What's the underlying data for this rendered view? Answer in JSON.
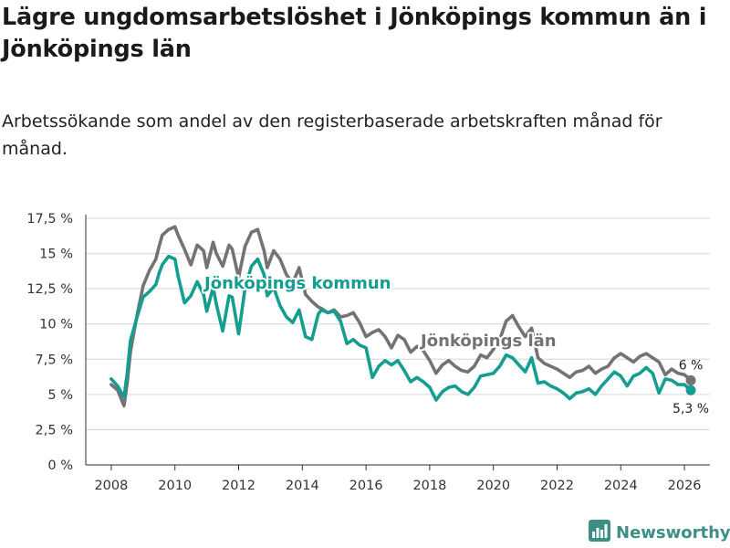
{
  "title": "Lägre ungdomsarbetslöshet i Jönköpings kommun än i Jönköpings län",
  "subtitle": "Arbetssökande som andel av den registerbaserade arbetskraften månad för månad.",
  "brand": {
    "name": "Newsworthy",
    "icon": "bar-chart-logo-icon"
  },
  "colors": {
    "kommun": "#139e8f",
    "lan": "#737373",
    "grid": "#dddddd",
    "axis": "#333333",
    "brand": "#3d8f86"
  },
  "chart_data": {
    "type": "line",
    "title": "Lägre ungdomsarbetslöshet i Jönköpings kommun än i Jönköpings län",
    "subtitle": "Arbetssökande som andel av den registerbaserade arbetskraften månad för månad.",
    "xlabel": "",
    "ylabel": "",
    "xlim": [
      2007.2,
      2026.8
    ],
    "ylim": [
      0,
      17.5
    ],
    "grid": true,
    "y_ticks": [
      0,
      2.5,
      5,
      7.5,
      10,
      12.5,
      15,
      17.5
    ],
    "y_tick_labels": [
      "0 %",
      "2,5 %",
      "5 %",
      "7,5 %",
      "10 %",
      "12,5 %",
      "15 %",
      "17,5 %"
    ],
    "x_ticks": [
      2008,
      2010,
      2012,
      2014,
      2016,
      2018,
      2020,
      2022,
      2024,
      2026
    ],
    "x_tick_labels": [
      "2008",
      "2010",
      "2012",
      "2014",
      "2016",
      "2018",
      "2020",
      "2022",
      "2024",
      "2026"
    ],
    "series": [
      {
        "name": "Jönköpings län",
        "label": "Jönköpings län",
        "end_label": "6 %",
        "color": "#737373",
        "x": [
          2008.0,
          2008.2,
          2008.4,
          2008.5,
          2008.6,
          2008.8,
          2009.0,
          2009.2,
          2009.4,
          2009.5,
          2009.6,
          2009.8,
          2010.0,
          2010.1,
          2010.3,
          2010.5,
          2010.7,
          2010.9,
          2011.0,
          2011.2,
          2011.3,
          2011.5,
          2011.7,
          2011.8,
          2012.0,
          2012.2,
          2012.4,
          2012.6,
          2012.8,
          2012.9,
          2013.1,
          2013.3,
          2013.5,
          2013.7,
          2013.9,
          2014.1,
          2014.3,
          2014.5,
          2014.6,
          2014.8,
          2015.0,
          2015.2,
          2015.4,
          2015.6,
          2015.8,
          2016.0,
          2016.2,
          2016.4,
          2016.6,
          2016.8,
          2017.0,
          2017.2,
          2017.4,
          2017.6,
          2017.8,
          2018.0,
          2018.2,
          2018.4,
          2018.6,
          2018.8,
          2019.0,
          2019.2,
          2019.4,
          2019.6,
          2019.8,
          2020.0,
          2020.2,
          2020.4,
          2020.6,
          2020.8,
          2021.0,
          2021.2,
          2021.4,
          2021.6,
          2021.8,
          2022.0,
          2022.2,
          2022.4,
          2022.6,
          2022.8,
          2023.0,
          2023.2,
          2023.4,
          2023.6,
          2023.8,
          2024.0,
          2024.2,
          2024.4,
          2024.6,
          2024.8,
          2025.0,
          2025.2,
          2025.4,
          2025.6,
          2025.8,
          2026.0,
          2026.2
        ],
        "values": [
          5.7,
          5.3,
          4.2,
          5.8,
          8.0,
          10.5,
          12.7,
          13.8,
          14.6,
          15.5,
          16.3,
          16.7,
          16.9,
          16.3,
          15.3,
          14.2,
          15.6,
          15.2,
          14.0,
          15.8,
          15.0,
          14.1,
          15.6,
          15.3,
          13.3,
          15.5,
          16.5,
          16.7,
          15.2,
          14.0,
          15.2,
          14.6,
          13.5,
          12.9,
          14.0,
          12.1,
          11.6,
          11.2,
          11.1,
          10.8,
          11.0,
          10.5,
          10.6,
          10.8,
          10.1,
          9.1,
          9.4,
          9.6,
          9.1,
          8.3,
          9.2,
          8.9,
          8.0,
          8.4,
          8.1,
          7.4,
          6.5,
          7.1,
          7.4,
          7.0,
          6.7,
          6.6,
          7.0,
          7.8,
          7.6,
          8.2,
          8.9,
          10.2,
          10.6,
          9.8,
          9.1,
          9.7,
          7.6,
          7.2,
          7.0,
          6.8,
          6.5,
          6.2,
          6.6,
          6.7,
          7.0,
          6.5,
          6.8,
          7.0,
          7.6,
          7.9,
          7.6,
          7.3,
          7.7,
          7.9,
          7.6,
          7.3,
          6.4,
          6.8,
          6.5,
          6.4,
          6.0
        ]
      },
      {
        "name": "Jönköpings kommun",
        "label": "Jönköpings kommun",
        "end_label": "5,3 %",
        "color": "#139e8f",
        "x": [
          2008.0,
          2008.2,
          2008.4,
          2008.5,
          2008.6,
          2008.8,
          2009.0,
          2009.2,
          2009.4,
          2009.5,
          2009.6,
          2009.8,
          2010.0,
          2010.1,
          2010.3,
          2010.5,
          2010.7,
          2010.9,
          2011.0,
          2011.2,
          2011.3,
          2011.5,
          2011.7,
          2011.8,
          2012.0,
          2012.2,
          2012.4,
          2012.6,
          2012.8,
          2012.9,
          2013.1,
          2013.3,
          2013.5,
          2013.7,
          2013.9,
          2014.1,
          2014.3,
          2014.5,
          2014.6,
          2014.8,
          2015.0,
          2015.2,
          2015.4,
          2015.6,
          2015.8,
          2016.0,
          2016.2,
          2016.4,
          2016.6,
          2016.8,
          2017.0,
          2017.2,
          2017.4,
          2017.6,
          2017.8,
          2018.0,
          2018.2,
          2018.4,
          2018.6,
          2018.8,
          2019.0,
          2019.2,
          2019.4,
          2019.6,
          2019.8,
          2020.0,
          2020.2,
          2020.4,
          2020.6,
          2020.8,
          2021.0,
          2021.2,
          2021.4,
          2021.6,
          2021.8,
          2022.0,
          2022.2,
          2022.4,
          2022.6,
          2022.8,
          2023.0,
          2023.2,
          2023.4,
          2023.6,
          2023.8,
          2024.0,
          2024.2,
          2024.4,
          2024.6,
          2024.8,
          2025.0,
          2025.2,
          2025.4,
          2025.6,
          2025.8,
          2026.0,
          2026.2
        ],
        "values": [
          6.1,
          5.6,
          4.8,
          6.5,
          8.8,
          10.4,
          11.9,
          12.3,
          12.8,
          13.6,
          14.2,
          14.8,
          14.6,
          13.4,
          11.5,
          12.0,
          13.0,
          12.1,
          10.9,
          12.6,
          11.4,
          9.5,
          12.0,
          11.9,
          9.3,
          12.5,
          14.1,
          14.6,
          13.5,
          12.0,
          12.6,
          11.3,
          10.5,
          10.1,
          11.0,
          9.1,
          8.9,
          10.7,
          11.0,
          10.8,
          10.9,
          10.2,
          8.6,
          8.9,
          8.5,
          8.3,
          6.2,
          7.0,
          7.4,
          7.1,
          7.4,
          6.7,
          5.9,
          6.2,
          5.9,
          5.5,
          4.6,
          5.2,
          5.5,
          5.6,
          5.2,
          5.0,
          5.5,
          6.3,
          6.4,
          6.5,
          7.0,
          7.8,
          7.6,
          7.1,
          6.6,
          7.6,
          5.8,
          5.9,
          5.6,
          5.4,
          5.1,
          4.7,
          5.1,
          5.2,
          5.4,
          5.0,
          5.6,
          6.1,
          6.6,
          6.3,
          5.6,
          6.3,
          6.5,
          6.9,
          6.5,
          5.1,
          6.1,
          6.0,
          5.7,
          5.7,
          5.3
        ]
      }
    ]
  }
}
